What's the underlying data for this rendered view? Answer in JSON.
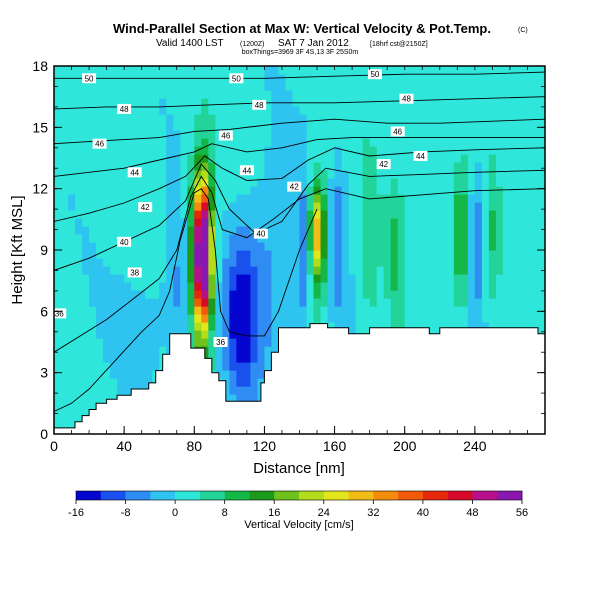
{
  "header": {
    "title": "Wind-Parallel Section at Max W: Vertical Velocity & Pot.Temp.",
    "title_mark": "(C)",
    "valid_main": "Valid 1400 LST",
    "valid_utc": "(1200Z)",
    "valid_date": "SAT 7 Jan 2012",
    "valid_run": "[18hrf cst@2150Z]",
    "credit": "boxThings=3969 3F 4S,13 3F 25S0m"
  },
  "chart_data": {
    "type": "heatmap",
    "x": {
      "label": "Distance [nm]",
      "range": [
        0,
        280
      ],
      "ticks": [
        0,
        40,
        80,
        120,
        160,
        200,
        240
      ]
    },
    "y": {
      "label": "Height [Kft MSL]",
      "range": [
        0,
        18
      ],
      "ticks": [
        0,
        3,
        6,
        9,
        12,
        15,
        18
      ]
    },
    "colorbar": {
      "label": "Vertical Velocity [cm/s]",
      "ticks": [
        -16,
        -8,
        0,
        8,
        16,
        24,
        32,
        40,
        48,
        56
      ],
      "colors": [
        "#0505d0",
        "#1a50ee",
        "#2f8cf2",
        "#2fc3f0",
        "#2ee6da",
        "#22d49a",
        "#14b848",
        "#1b9a1c",
        "#6fc21c",
        "#b2dc1c",
        "#e4e61c",
        "#f2bc16",
        "#f68c0e",
        "#f05a0a",
        "#e8280a",
        "#d80a2a",
        "#b8108a",
        "#8a18b0"
      ]
    },
    "terrain_kft": [
      [
        0,
        0.3
      ],
      [
        12,
        0.3
      ],
      [
        12,
        0.6
      ],
      [
        16,
        0.6
      ],
      [
        16,
        0.9
      ],
      [
        20,
        0.9
      ],
      [
        20,
        1.2
      ],
      [
        24,
        1.2
      ],
      [
        24,
        1.5
      ],
      [
        30,
        1.5
      ],
      [
        30,
        1.7
      ],
      [
        36,
        1.7
      ],
      [
        36,
        1.9
      ],
      [
        44,
        1.9
      ],
      [
        44,
        2.2
      ],
      [
        54,
        2.2
      ],
      [
        54,
        2.5
      ],
      [
        58,
        2.5
      ],
      [
        58,
        3.1
      ],
      [
        62,
        3.1
      ],
      [
        62,
        3.9
      ],
      [
        66,
        3.9
      ],
      [
        66,
        4.9
      ],
      [
        78,
        4.9
      ],
      [
        78,
        4.2
      ],
      [
        86,
        4.2
      ],
      [
        86,
        3.7
      ],
      [
        90,
        3.7
      ],
      [
        90,
        3.0
      ],
      [
        94,
        3.0
      ],
      [
        94,
        2.6
      ],
      [
        98,
        2.6
      ],
      [
        98,
        1.6
      ],
      [
        118,
        1.6
      ],
      [
        118,
        2.5
      ],
      [
        120,
        2.5
      ],
      [
        120,
        3.1
      ],
      [
        124,
        3.1
      ],
      [
        124,
        4.0
      ],
      [
        128,
        4.0
      ],
      [
        128,
        5.2
      ],
      [
        146,
        5.2
      ],
      [
        146,
        5.4
      ],
      [
        156,
        5.4
      ],
      [
        156,
        5.2
      ],
      [
        168,
        5.2
      ],
      [
        168,
        4.9
      ],
      [
        180,
        4.9
      ],
      [
        180,
        5.2
      ],
      [
        214,
        5.2
      ],
      [
        214,
        4.9
      ],
      [
        220,
        4.9
      ],
      [
        220,
        5.2
      ],
      [
        276,
        5.2
      ],
      [
        276,
        4.9
      ],
      [
        280,
        4.9
      ]
    ],
    "w_features": [
      {
        "x": 85,
        "y": 9.0,
        "rx": 4,
        "ry": 3.2,
        "w": 40
      },
      {
        "x": 84,
        "y": 8.5,
        "rx": 6,
        "ry": 4.0,
        "w": 24
      },
      {
        "x": 84,
        "y": 8.5,
        "rx": 8,
        "ry": 5.0,
        "w": 12
      },
      {
        "x": 73,
        "y": 7.5,
        "rx": 7,
        "ry": 4.0,
        "w": -6
      },
      {
        "x": 107,
        "y": 5.5,
        "rx": 8,
        "ry": 3.5,
        "w": -12
      },
      {
        "x": 110,
        "y": 6.5,
        "rx": 20,
        "ry": 4.5,
        "w": -6
      },
      {
        "x": 60,
        "y": 6.0,
        "rx": 25,
        "ry": 3.5,
        "w": -3
      },
      {
        "x": 125,
        "y": 8.5,
        "rx": 15,
        "ry": 5.0,
        "w": -4
      },
      {
        "x": 150,
        "y": 10.0,
        "rx": 4,
        "ry": 2.0,
        "w": 20
      },
      {
        "x": 151,
        "y": 9.5,
        "rx": 6,
        "ry": 3.2,
        "w": 12
      },
      {
        "x": 142,
        "y": 8.5,
        "rx": 4,
        "ry": 4.0,
        "w": -8
      },
      {
        "x": 162,
        "y": 9.5,
        "rx": 5,
        "ry": 4.0,
        "w": -8
      },
      {
        "x": 180,
        "y": 9.5,
        "rx": 5,
        "ry": 4.0,
        "w": 6
      },
      {
        "x": 195,
        "y": 9.0,
        "rx": 5,
        "ry": 3.5,
        "w": 7
      },
      {
        "x": 232,
        "y": 9.5,
        "rx": 3,
        "ry": 3.0,
        "w": 18
      },
      {
        "x": 242,
        "y": 9.5,
        "rx": 4,
        "ry": 3.5,
        "w": -9
      },
      {
        "x": 250,
        "y": 9.5,
        "rx": 4,
        "ry": 3.5,
        "w": 6
      },
      {
        "x": 215,
        "y": 9.0,
        "rx": 4,
        "ry": 3.0,
        "w": 3
      }
    ],
    "theta_contours": [
      {
        "label": "36",
        "points": [
          [
            0,
            1.1
          ],
          [
            10,
            1.5
          ],
          [
            20,
            2.2
          ],
          [
            35,
            3.6
          ],
          [
            50,
            5.0
          ],
          [
            60,
            5.8
          ],
          [
            66,
            7.0
          ],
          [
            72,
            9.5
          ],
          [
            80,
            11.8
          ],
          [
            84,
            12.0
          ],
          [
            88,
            11.5
          ],
          [
            92,
            9.0
          ],
          [
            95,
            6.0
          ],
          [
            100,
            5.0
          ],
          [
            110,
            4.8
          ],
          [
            120,
            4.8
          ],
          [
            128,
            6.0
          ],
          [
            140,
            9.0
          ],
          [
            150,
            11.0
          ]
        ],
        "labels_at": [
          [
            3,
            5.9
          ],
          [
            95,
            4.5
          ]
        ]
      },
      {
        "label": "38",
        "points": [
          [
            0,
            4.0
          ],
          [
            15,
            4.8
          ],
          [
            30,
            5.6
          ],
          [
            45,
            6.6
          ],
          [
            60,
            7.6
          ],
          [
            70,
            9.0
          ],
          [
            78,
            11.6
          ],
          [
            84,
            12.6
          ],
          [
            90,
            11.8
          ],
          [
            96,
            10.0
          ],
          [
            110,
            9.6
          ],
          [
            125,
            10.5
          ],
          [
            140,
            11.5
          ],
          [
            155,
            12.0
          ],
          [
            180,
            11.5
          ],
          [
            210,
            11.7
          ],
          [
            240,
            11.9
          ],
          [
            280,
            12.0
          ]
        ],
        "labels_at": [
          [
            46,
            7.9
          ]
        ]
      },
      {
        "label": "40",
        "points": [
          [
            0,
            8.0
          ],
          [
            20,
            8.6
          ],
          [
            40,
            9.4
          ],
          [
            60,
            10.2
          ],
          [
            75,
            11.4
          ],
          [
            84,
            13.2
          ],
          [
            92,
            12.4
          ],
          [
            100,
            11.0
          ],
          [
            115,
            9.8
          ],
          [
            130,
            10.4
          ],
          [
            145,
            12.2
          ],
          [
            155,
            13.0
          ],
          [
            180,
            12.6
          ],
          [
            210,
            12.7
          ],
          [
            240,
            12.8
          ],
          [
            280,
            12.9
          ]
        ],
        "labels_at": [
          [
            40,
            9.4
          ],
          [
            118,
            9.8
          ]
        ]
      },
      {
        "label": "42",
        "points": [
          [
            0,
            10.4
          ],
          [
            20,
            10.8
          ],
          [
            40,
            11.3
          ],
          [
            60,
            12.0
          ],
          [
            75,
            12.6
          ],
          [
            86,
            13.6
          ],
          [
            96,
            13.0
          ],
          [
            110,
            12.4
          ],
          [
            130,
            12.5
          ],
          [
            145,
            13.4
          ],
          [
            160,
            14.0
          ],
          [
            180,
            13.6
          ],
          [
            210,
            13.8
          ],
          [
            240,
            13.9
          ],
          [
            280,
            14.0
          ]
        ],
        "labels_at": [
          [
            52,
            11.1
          ],
          [
            137,
            12.1
          ],
          [
            188,
            13.2
          ]
        ]
      },
      {
        "label": "44",
        "points": [
          [
            0,
            12.6
          ],
          [
            20,
            12.8
          ],
          [
            40,
            13.0
          ],
          [
            60,
            13.4
          ],
          [
            80,
            13.8
          ],
          [
            90,
            14.2
          ],
          [
            110,
            13.8
          ],
          [
            130,
            14.0
          ],
          [
            150,
            14.4
          ],
          [
            170,
            14.5
          ],
          [
            200,
            14.5
          ],
          [
            230,
            14.5
          ],
          [
            280,
            14.5
          ]
        ],
        "labels_at": [
          [
            46,
            12.8
          ],
          [
            110,
            12.9
          ],
          [
            209,
            13.6
          ]
        ]
      },
      {
        "label": "46",
        "points": [
          [
            0,
            14.2
          ],
          [
            20,
            14.3
          ],
          [
            40,
            14.4
          ],
          [
            60,
            14.5
          ],
          [
            80,
            14.8
          ],
          [
            100,
            14.9
          ],
          [
            130,
            15.2
          ],
          [
            160,
            15.4
          ],
          [
            190,
            15.2
          ],
          [
            220,
            15.2
          ],
          [
            280,
            15.4
          ]
        ],
        "labels_at": [
          [
            26,
            14.2
          ],
          [
            98,
            14.6
          ],
          [
            196,
            14.8
          ]
        ]
      },
      {
        "label": "48",
        "points": [
          [
            0,
            15.9
          ],
          [
            30,
            16.0
          ],
          [
            60,
            16.0
          ],
          [
            90,
            16.1
          ],
          [
            120,
            16.2
          ],
          [
            160,
            16.2
          ],
          [
            200,
            16.3
          ],
          [
            240,
            16.4
          ],
          [
            280,
            16.5
          ]
        ],
        "labels_at": [
          [
            40,
            15.9
          ],
          [
            117,
            16.1
          ],
          [
            201,
            16.4
          ]
        ]
      },
      {
        "label": "50",
        "points": [
          [
            0,
            17.4
          ],
          [
            30,
            17.4
          ],
          [
            60,
            17.4
          ],
          [
            90,
            17.4
          ],
          [
            120,
            17.4
          ],
          [
            160,
            17.5
          ],
          [
            200,
            17.6
          ],
          [
            240,
            17.6
          ],
          [
            280,
            17.7
          ]
        ],
        "labels_at": [
          [
            20,
            17.4
          ],
          [
            104,
            17.4
          ],
          [
            183,
            17.6
          ]
        ]
      }
    ]
  }
}
